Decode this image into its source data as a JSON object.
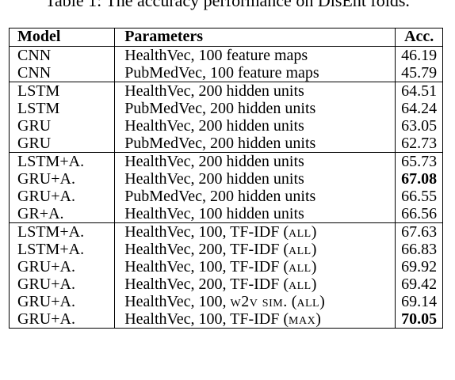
{
  "caption": "Table 1: The accuracy performance on DisEnt folds.",
  "table": {
    "headers": {
      "model": "Model",
      "parameters": "Parameters",
      "accuracy": "Acc."
    },
    "groups": [
      [
        {
          "model": "CNN",
          "params": "HealthVec, 100 feature maps",
          "acc": "46.19"
        },
        {
          "model": "CNN",
          "params": "PubMedVec, 100 feature maps",
          "acc": "45.79"
        }
      ],
      [
        {
          "model": "LSTM",
          "params": "HealthVec, 200 hidden units",
          "acc": "64.51"
        },
        {
          "model": "LSTM",
          "params": "PubMedVec, 200 hidden units",
          "acc": "64.24"
        },
        {
          "model": "GRU",
          "params": "HealthVec, 200 hidden units",
          "acc": "63.05"
        },
        {
          "model": "GRU",
          "params": "PubMedVec, 200 hidden units",
          "acc": "62.73"
        }
      ],
      [
        {
          "model": "LSTM+A.",
          "params": "HealthVec, 200 hidden units",
          "acc": "65.73"
        },
        {
          "model": "GRU+A.",
          "params": "HealthVec, 200 hidden units",
          "acc": "67.08"
        },
        {
          "model": "GRU+A.",
          "params": "PubMedVec, 200 hidden units",
          "acc": "66.55"
        },
        {
          "model": "GR+A.",
          "params": "HealthVec, 100 hidden units",
          "acc": "66.56"
        }
      ],
      [
        {
          "model": "LSTM+A.",
          "params_base": "HealthVec, 100, TF-IDF",
          "params_sc": "all",
          "acc": "67.63"
        },
        {
          "model": "LSTM+A.",
          "params_base": "HealthVec, 200, TF-IDF",
          "params_sc": "all",
          "acc": "66.83"
        },
        {
          "model": "GRU+A.",
          "params_base": "HealthVec, 100, TF-IDF",
          "params_sc": "all",
          "acc": "69.92"
        },
        {
          "model": "GRU+A.",
          "params_base": "HealthVec, 200, TF-IDF",
          "params_sc": "all",
          "acc": "69.42"
        },
        {
          "model": "GRU+A.",
          "params_base": "HealthVec, 100,",
          "params_sc": "w2v sim.",
          "params_sc2": "all",
          "acc": "69.14"
        },
        {
          "model": "GRU+A.",
          "params_base": "HealthVec, 100, TF-IDF",
          "params_sc": "max",
          "acc": "70.05"
        }
      ]
    ]
  }
}
